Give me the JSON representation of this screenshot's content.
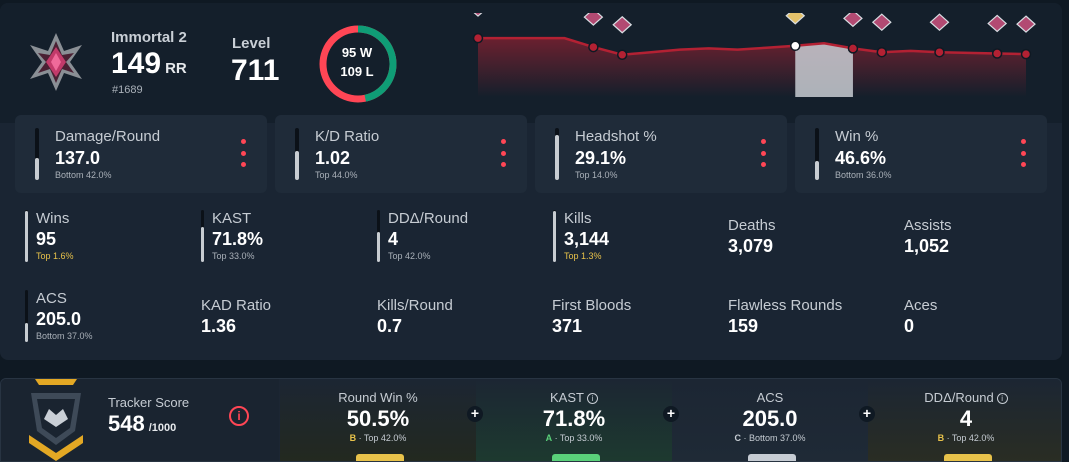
{
  "rank": {
    "name": "Immortal 2",
    "rr_value": "149",
    "rr_unit": "RR",
    "leaderboard": "#1689",
    "icon": "immortal-rank-icon"
  },
  "level": {
    "label": "Level",
    "value": "711"
  },
  "win_loss": {
    "wins": "95 W",
    "losses": "109 L",
    "win_fraction": 0.466,
    "win_color": "#0f9d76",
    "loss_color": "#ff4655"
  },
  "rr_history": {
    "type": "line",
    "values": [
      92,
      92,
      92,
      92,
      78,
      66,
      70,
      74,
      76,
      74,
      77,
      80,
      84,
      76,
      70,
      72,
      70,
      69,
      68,
      67
    ],
    "rank_markers": [
      0,
      4,
      5,
      11,
      13,
      14,
      16,
      18,
      19
    ],
    "highlight_range": [
      11,
      13
    ],
    "line_color": "#b32133"
  },
  "cards": [
    {
      "label": "Damage/Round",
      "value": "137.0",
      "sub": "Bottom 42.0%",
      "fill": 0.42
    },
    {
      "label": "K/D Ratio",
      "value": "1.02",
      "sub": "Top 44.0%",
      "fill": 0.56
    },
    {
      "label": "Headshot %",
      "value": "29.1%",
      "sub": "Top 14.0%",
      "fill": 0.86
    },
    {
      "label": "Win %",
      "value": "46.6%",
      "sub": "Bottom 36.0%",
      "fill": 0.36
    }
  ],
  "stats": {
    "wins": {
      "label": "Wins",
      "value": "95",
      "sub": "Top 1.6%",
      "fill": 0.98
    },
    "kast": {
      "label": "KAST",
      "value": "71.8%",
      "sub": "Top 33.0%",
      "fill": 0.67
    },
    "dda": {
      "label": "DDΔ/Round",
      "value": "4",
      "sub": "Top 42.0%",
      "fill": 0.58
    },
    "kills": {
      "label": "Kills",
      "value": "3,144",
      "sub": "Top 1.3%",
      "fill": 0.99
    },
    "deaths": {
      "label": "Deaths",
      "value": "3,079"
    },
    "assists": {
      "label": "Assists",
      "value": "1,052"
    },
    "acs": {
      "label": "ACS",
      "value": "205.0",
      "sub": "Bottom 37.0%",
      "fill": 0.37
    },
    "kad": {
      "label": "KAD Ratio",
      "value": "1.36"
    },
    "kills_round": {
      "label": "Kills/Round",
      "value": "0.7"
    },
    "first_bloods": {
      "label": "First Bloods",
      "value": "371"
    },
    "flawless": {
      "label": "Flawless Rounds",
      "value": "159"
    },
    "aces": {
      "label": "Aces",
      "value": "0"
    }
  },
  "tracker": {
    "label": "Tracker Score",
    "value": "548",
    "max": "/1000",
    "info_icon": "i",
    "logo": "tracker-score-logo"
  },
  "segments": [
    {
      "label": "Round Win %",
      "value": "50.5%",
      "grade": "B",
      "sub": " · Top 42.0%",
      "grade_color": "#e8c24a",
      "bg": "#23291f",
      "pill": "#e8c24a",
      "info": false
    },
    {
      "label": "KAST",
      "value": "71.8%",
      "grade": "A",
      "sub": " · Top 33.0%",
      "grade_color": "#5ad17a",
      "bg": "#1d3a2f",
      "pill": "#5ad17a",
      "info": true
    },
    {
      "label": "ACS",
      "value": "205.0",
      "grade": "C",
      "sub": " · Bottom 37.0%",
      "grade_color": "#c6ccd3",
      "bg": "#1f2a36",
      "pill": "#c6ccd3",
      "info": false
    },
    {
      "label": "DDΔ/Round",
      "value": "4",
      "grade": "B",
      "sub": " · Top 42.0%",
      "grade_color": "#e8c24a",
      "bg": "#2a2d23",
      "pill": "#e8c24a",
      "info": true
    }
  ],
  "info_glyph": "i",
  "plus_glyph": "+"
}
